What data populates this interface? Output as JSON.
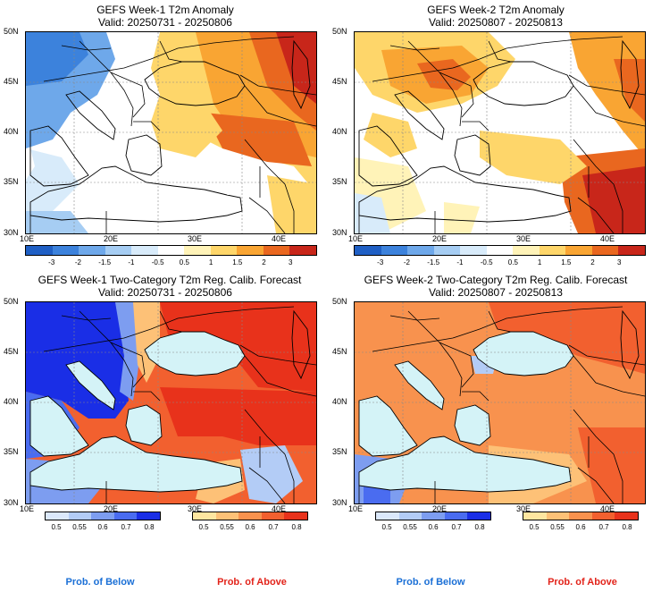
{
  "panels": [
    {
      "title": "GEFS Week-1 T2m Anomaly",
      "valid": "Valid: 20250731 - 20250806",
      "kind": "anomaly",
      "scene": "w1a"
    },
    {
      "title": "GEFS Week-2 T2m Anomaly",
      "valid": "Valid: 20250807 - 20250813",
      "kind": "anomaly",
      "scene": "w2a"
    },
    {
      "title": "GEFS Week-1 Two-Category T2m Reg. Calib. Forecast",
      "valid": "Valid: 20250731 - 20250806",
      "kind": "prob",
      "scene": "w1p"
    },
    {
      "title": "GEFS Week-2 Two-Category T2m Reg. Calib. Forecast",
      "valid": "Valid: 20250807 - 20250813",
      "kind": "prob",
      "scene": "w2p"
    }
  ],
  "lat_labels": [
    "50N",
    "45N",
    "40N",
    "35N",
    "30N"
  ],
  "lon_labels": [
    "10E",
    "20E",
    "30E",
    "40E"
  ],
  "anomaly_scale": {
    "labels": [
      "-3",
      "-2",
      "-1.5",
      "-1",
      "-0.5",
      "0.5",
      "1",
      "1.5",
      "2",
      "3"
    ],
    "colors": [
      "#1f5fc4",
      "#3c82dc",
      "#6ea8ea",
      "#a6cdf3",
      "#d8ebfa",
      "#ffffff",
      "#fff3b8",
      "#fed66a",
      "#f9a533",
      "#e9671f",
      "#c8261a"
    ]
  },
  "prob_below_scale": {
    "labels": [
      "0.5",
      "0.55",
      "0.6",
      "0.7",
      "0.8"
    ],
    "colors": [
      "#dbe8fb",
      "#b3ccf6",
      "#7d9df0",
      "#4a6cf0",
      "#1a2ee6"
    ]
  },
  "prob_above_scale": {
    "labels": [
      "0.5",
      "0.55",
      "0.6",
      "0.7",
      "0.8"
    ],
    "colors": [
      "#fee6a0",
      "#fdc177",
      "#f8924e",
      "#f2602f",
      "#e8321b"
    ]
  },
  "footer": {
    "below": "Prob. of Below",
    "above": "Prob. of Above",
    "below_color": "#1a6fd6",
    "above_color": "#e2231a"
  }
}
